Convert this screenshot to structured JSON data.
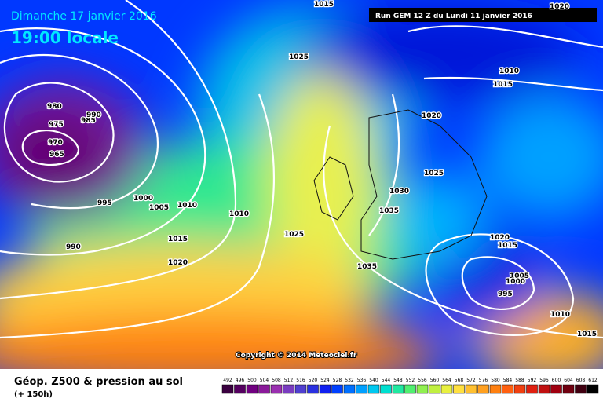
{
  "header": {
    "date": "Dimanche 17 janvier 2016",
    "time": "19:00 locale",
    "run": "Run GEM 12 Z du Lundi 11 janvier 2016"
  },
  "copyright": "Copyright © 2014 Meteociel.fr",
  "footer": {
    "title": "Géop. Z500 & pression au sol",
    "subtitle": "(+ 150h)"
  },
  "isobar_labels": [
    1015,
    1025,
    1020,
    1010,
    1015,
    1020,
    980,
    975,
    985,
    990,
    970,
    965,
    1025,
    1030,
    1035,
    995,
    1000,
    1005,
    1010,
    1010,
    1025,
    990,
    1015,
    1020,
    1035,
    1020,
    1015,
    1005,
    1000,
    995,
    1010,
    1015
  ],
  "legend": {
    "values": [
      492,
      496,
      500,
      504,
      508,
      512,
      516,
      520,
      524,
      528,
      532,
      536,
      540,
      544,
      548,
      552,
      556,
      560,
      564,
      568,
      572,
      576,
      580,
      584,
      588,
      592,
      596,
      600,
      604,
      608,
      612
    ],
    "colors": [
      "#3a0040",
      "#550060",
      "#700080",
      "#8a1a9a",
      "#9a30b0",
      "#7a3cc0",
      "#5040d0",
      "#2a30e0",
      "#1020f0",
      "#0040ff",
      "#0070ff",
      "#00a0ff",
      "#00c8f0",
      "#00e0d0",
      "#20e8a0",
      "#50f070",
      "#90f050",
      "#c0f040",
      "#e8f040",
      "#ffe040",
      "#ffc030",
      "#ffa020",
      "#ff8010",
      "#ff6010",
      "#f04010",
      "#e02010",
      "#c01010",
      "#a00010",
      "#700010",
      "#400010",
      "#000000"
    ]
  }
}
